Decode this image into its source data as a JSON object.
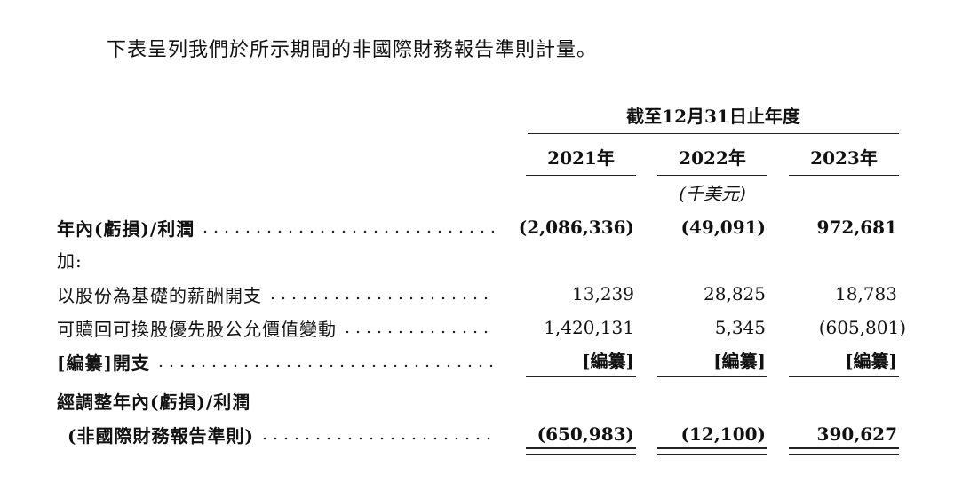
{
  "intro_text": "下表呈列我們於所示期間的非國際財務報告準則計量。",
  "header": {
    "period_label": "截至12月31日止年度",
    "years": [
      "2021年",
      "2022年",
      "2023年"
    ],
    "unit": "(千美元)"
  },
  "rows": [
    {
      "label": "年內(虧損)/利潤",
      "values": [
        "(2,086,336)",
        "(49,091)",
        "972,681"
      ]
    },
    {
      "label": "加:"
    },
    {
      "label": "以股份為基礎的薪酬開支",
      "values": [
        "13,239",
        "28,825",
        "18,783"
      ]
    },
    {
      "label": "可贖回可換股優先股公允價值變動",
      "values": [
        "1,420,131",
        "5,345",
        "(605,801)"
      ]
    },
    {
      "label": "[編纂]開支",
      "values": [
        "[編纂]",
        "[編纂]",
        "[編纂]"
      ]
    },
    {
      "label": "經調整年內(虧損)/利潤"
    },
    {
      "label": "(非國際財務報告準則)",
      "values": [
        "(650,983)",
        "(12,100)",
        "390,627"
      ]
    }
  ]
}
